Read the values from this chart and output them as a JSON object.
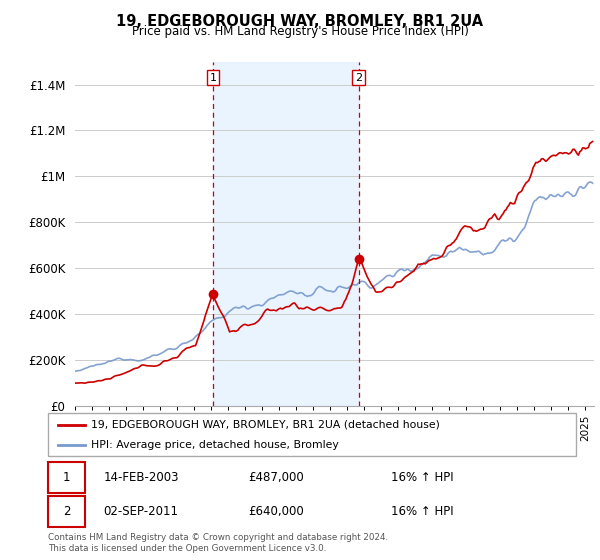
{
  "title": "19, EDGEBOROUGH WAY, BROMLEY, BR1 2UA",
  "subtitle": "Price paid vs. HM Land Registry's House Price Index (HPI)",
  "ylabel_ticks": [
    "£0",
    "£200K",
    "£400K",
    "£600K",
    "£800K",
    "£1M",
    "£1.2M",
    "£1.4M"
  ],
  "ytick_vals": [
    0,
    200000,
    400000,
    600000,
    800000,
    1000000,
    1200000,
    1400000
  ],
  "ylim": [
    0,
    1500000
  ],
  "purchase1_date": "14-FEB-2003",
  "purchase1_price": 487000,
  "purchase1_hpi": "16% ↑ HPI",
  "purchase1_x": 2003.12,
  "purchase2_date": "02-SEP-2011",
  "purchase2_price": 640000,
  "purchase2_hpi": "16% ↑ HPI",
  "purchase2_x": 2011.67,
  "legend_label_red": "19, EDGEBOROUGH WAY, BROMLEY, BR1 2UA (detached house)",
  "legend_label_blue": "HPI: Average price, detached house, Bromley",
  "footer": "Contains HM Land Registry data © Crown copyright and database right 2024.\nThis data is licensed under the Open Government Licence v3.0.",
  "red_color": "#cc0000",
  "blue_color": "#7799cc",
  "vline_color": "#cc0000",
  "marker_color": "#cc0000",
  "background_color": "#ffffff",
  "shade_color": "#ddeeff",
  "grid_color": "#cccccc",
  "xmin": 1995,
  "xmax": 2025.5
}
